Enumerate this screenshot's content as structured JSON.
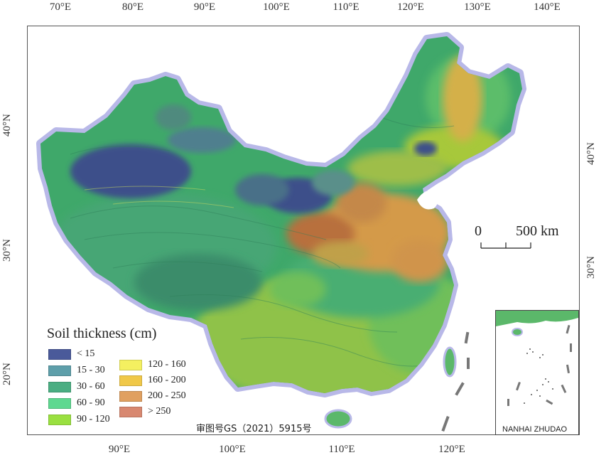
{
  "axis": {
    "top_lon": [
      "70°E",
      "80°E",
      "90°E",
      "100°E",
      "110°E",
      "120°E",
      "130°E",
      "140°E"
    ],
    "bottom_lon": [
      "90°E",
      "100°E",
      "110°E",
      "120°E"
    ],
    "left_lat": [
      "40°N",
      "30°N",
      "20°N"
    ],
    "right_lat": [
      "40°N",
      "30°N"
    ]
  },
  "legend": {
    "title": "Soil thickness (cm)",
    "items": [
      {
        "label": "< 15",
        "color": "#4a5a9a"
      },
      {
        "label": "15 - 30",
        "color": "#5e9faa"
      },
      {
        "label": "30 - 60",
        "color": "#4aae82"
      },
      {
        "label": "60 - 90",
        "color": "#5ed890"
      },
      {
        "label": "90 - 120",
        "color": "#9ae040"
      },
      {
        "label": "120 - 160",
        "color": "#f4f060"
      },
      {
        "label": "160 - 200",
        "color": "#f0c848"
      },
      {
        "label": "200 - 250",
        "color": "#e0a060"
      },
      {
        "label": "> 250",
        "color": "#d88870"
      }
    ]
  },
  "scalebar": {
    "label_start": "0",
    "label_end": "500 km"
  },
  "approval_number": "审图号GS（2021）5915号",
  "inset": {
    "label": "NANHAI ZHUDAO"
  },
  "colors": {
    "halo": "#b8b8e8",
    "deep_low": "#3c4f8a",
    "green": "#3fa86a",
    "yellow_green": "#a7c83a",
    "orange": "#d49a4a",
    "brown": "#b8703c"
  }
}
